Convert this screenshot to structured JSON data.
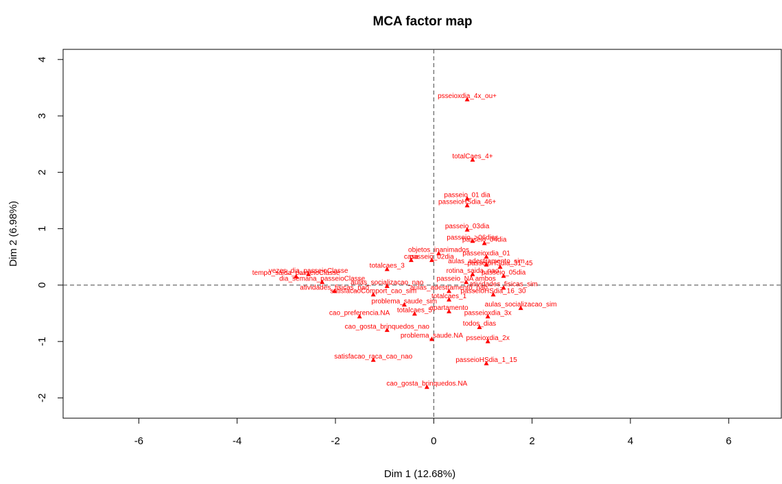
{
  "chart_data": {
    "type": "scatter",
    "title": "MCA factor map",
    "x_label": "Dim 1 (12.68%)",
    "y_label": "Dim 2 (6.98%)",
    "xlim": [
      -7.54,
      7.07
    ],
    "ylim": [
      -2.36,
      4.18
    ],
    "xticks": [
      -6,
      -4,
      -2,
      0,
      2,
      4,
      6
    ],
    "yticks": [
      -2,
      -1,
      0,
      1,
      2,
      3,
      4
    ],
    "zero_lines": true,
    "color": "#ff0000",
    "labels": [
      "psseioxdia_4x_ou+",
      "totalCaes_4+",
      "passeio_01 dia",
      "passeioHSdia_46+",
      "passeio_03dia",
      "passeio_>06dias",
      "passeio_04dia",
      "objetos_inanimados",
      "passeioxdia_01",
      "passeio_02dia",
      "casa",
      "totalcaes_3",
      "passeioHSdia_31_45",
      "passeio_05dia",
      "aulas_adestramento_sim",
      "atividades_fisicas_sim",
      "passeioHSdia_16_30",
      "aulas_socializacao_sim",
      "passeioxdia_3x",
      "todos_dias",
      "psseioxdia_2x",
      "passeioHSdia_1_15",
      "cao_gosta_brinquedos.NA",
      "satisfacao_raca_cao_nao",
      "problema_saude.NA",
      "cao_gosta_brinquedos_nao",
      "totalcaes_5",
      "apartamento",
      "cao_preferencia.NA",
      "problema_saude_sim",
      "totalcaes_1",
      "atividades_fisicas_nao",
      "satisfacaoComport_cao_sim",
      "tempo_saida_passeioClasse",
      "vezes_dia_passeioClasse",
      "dia_semana_passeioClasse",
      "aulas_socializacao_nao",
      "aulas_adestramento_nao",
      "rotina_saida_nao",
      "passeio_NA ambos"
    ],
    "x": [
      0.68,
      0.79,
      0.68,
      0.68,
      0.68,
      0.79,
      1.03,
      0.1,
      1.07,
      -0.04,
      -0.46,
      -0.95,
      1.35,
      1.42,
      1.07,
      1.42,
      1.21,
      1.77,
      1.1,
      0.93,
      1.1,
      1.07,
      -0.14,
      -1.23,
      -0.04,
      -0.95,
      -0.39,
      0.31,
      -1.51,
      -0.6,
      0.31,
      -2.02,
      -1.23,
      -2.8,
      -2.55,
      -2.27,
      -0.95,
      0.31,
      0.79,
      0.66
    ],
    "values": [
      3.29,
      2.22,
      1.53,
      1.41,
      0.98,
      0.78,
      0.74,
      0.56,
      0.5,
      0.44,
      0.44,
      0.28,
      0.32,
      0.16,
      0.36,
      -0.05,
      -0.17,
      -0.41,
      -0.56,
      -0.75,
      -1.0,
      -1.39,
      -1.81,
      -1.33,
      -0.96,
      -0.8,
      -0.51,
      -0.47,
      -0.56,
      -0.35,
      -0.26,
      -0.11,
      -0.17,
      0.15,
      0.19,
      0.05,
      -0.02,
      -0.11,
      0.19,
      0.05
    ]
  }
}
